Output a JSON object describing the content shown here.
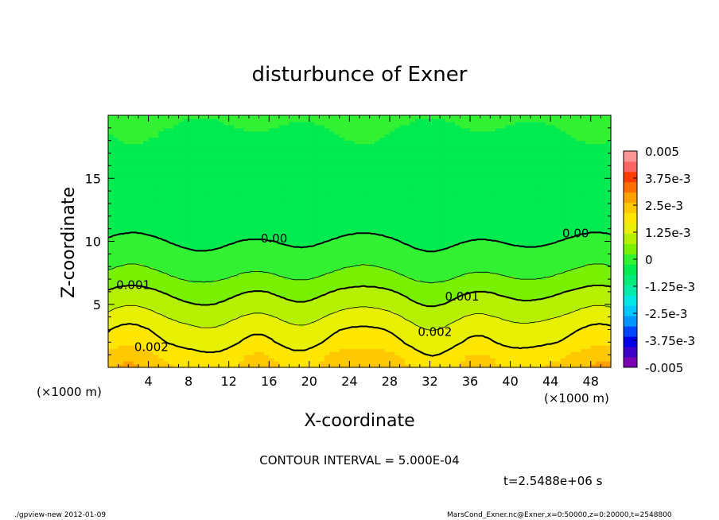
{
  "chart_data": {
    "type": "heatmap",
    "title": "disturbunce of Exner",
    "xlabel": "X-coordinate",
    "ylabel": "Z-coordinate",
    "x_unit": "(×1000 m)",
    "xlim": [
      0,
      50
    ],
    "ylim": [
      0,
      20
    ],
    "x_ticks": [
      "4",
      "8",
      "12",
      "16",
      "20",
      "24",
      "28",
      "32",
      "36",
      "40",
      "44",
      "48"
    ],
    "x_tick_values": [
      4,
      8,
      12,
      16,
      20,
      24,
      28,
      32,
      36,
      40,
      44,
      48
    ],
    "y_ticks": [
      "5",
      "10",
      "15"
    ],
    "y_tick_values": [
      5,
      10,
      15
    ],
    "contour_interval_text": "CONTOUR INTERVAL = 5.000E-04",
    "time_text": "t=2.5488e+06 s",
    "contour_labels": [
      {
        "text": "0.00",
        "x": 16.5,
        "z": 9.9
      },
      {
        "text": "0.00",
        "x": 46.5,
        "z": 10.3
      },
      {
        "text": "0.001",
        "x": 2.5,
        "z": 6.2
      },
      {
        "text": "0.001",
        "x": 35.2,
        "z": 5.3
      },
      {
        "text": "0.002",
        "x": 4.3,
        "z": 1.3
      },
      {
        "text": "0.002",
        "x": 32.5,
        "z": 2.5
      }
    ],
    "colorbar": {
      "labels": [
        "0.005",
        "3.75e-3",
        "2.5e-3",
        "1.25e-3",
        "0",
        "-1.25e-3",
        "-2.5e-3",
        "-3.75e-3",
        "-0.005"
      ],
      "levels": [
        -0.005,
        -0.0045,
        -0.004,
        -0.0035,
        -0.003,
        -0.0025,
        -0.002,
        -0.0015,
        -0.001,
        -0.0005,
        0,
        0.0005,
        0.001,
        0.0015,
        0.002,
        0.0025,
        0.003,
        0.0035,
        0.004,
        0.0045,
        0.005
      ],
      "colors": [
        "#7a00b4",
        "#3c00c8",
        "#0000e6",
        "#0046ff",
        "#0096ff",
        "#00c8ff",
        "#00e6e6",
        "#00ebaa",
        "#00eb78",
        "#00eb50",
        "#32f032",
        "#78f000",
        "#b4f000",
        "#e6f000",
        "#ffe600",
        "#ffc800",
        "#ffa000",
        "#ff6e00",
        "#ff3c00",
        "#ff6464",
        "#ff9696"
      ]
    },
    "field_profile": [
      {
        "z": 0,
        "value": 0.0026
      },
      {
        "z": 1,
        "value": 0.0024
      },
      {
        "z": 2,
        "value": 0.002
      },
      {
        "z": 3,
        "value": 0.0018
      },
      {
        "z": 4,
        "value": 0.0015
      },
      {
        "z": 5,
        "value": 0.0012
      },
      {
        "z": 6,
        "value": 0.00095
      },
      {
        "z": 7,
        "value": 0.0006
      },
      {
        "z": 8,
        "value": 0.00035
      },
      {
        "z": 9,
        "value": 0.00018
      },
      {
        "z": 10,
        "value": 0.0
      },
      {
        "z": 11,
        "value": -0.0002
      },
      {
        "z": 13,
        "value": -0.00035
      },
      {
        "z": 15,
        "value": -0.0003
      },
      {
        "z": 17,
        "value": -0.0001
      },
      {
        "z": 20,
        "value": 5e-05
      }
    ]
  },
  "footer": {
    "left": "./gpview-new   2012-01-09",
    "right": "MarsCond_Exner.nc@Exner,x=0:50000,z=0:20000,t=2548800"
  }
}
